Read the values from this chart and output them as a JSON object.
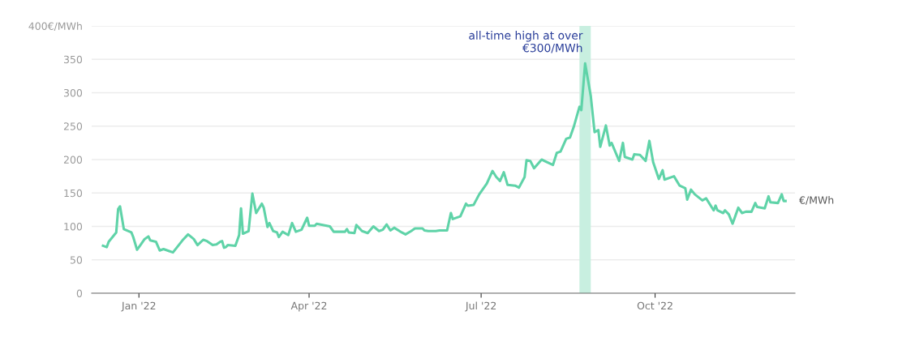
{
  "chart_data": {
    "type": "line",
    "x": [
      "2021-12-13",
      "2021-12-15",
      "2021-12-16",
      "2021-12-20",
      "2021-12-21",
      "2021-12-22",
      "2021-12-24",
      "2021-12-28",
      "2021-12-29",
      "2021-12-31",
      "2022-01-02",
      "2022-01-04",
      "2022-01-06",
      "2022-01-07",
      "2022-01-10",
      "2022-01-12",
      "2022-01-14",
      "2022-01-17",
      "2022-01-19",
      "2022-01-24",
      "2022-01-27",
      "2022-01-30",
      "2022-02-01",
      "2022-02-04",
      "2022-02-06",
      "2022-02-09",
      "2022-02-11",
      "2022-02-13",
      "2022-02-14",
      "2022-02-15",
      "2022-02-16",
      "2022-02-17",
      "2022-02-21",
      "2022-02-23",
      "2022-02-24",
      "2022-02-25",
      "2022-02-28",
      "2022-03-02",
      "2022-03-04",
      "2022-03-07",
      "2022-03-08",
      "2022-03-10",
      "2022-03-11",
      "2022-03-13",
      "2022-03-15",
      "2022-03-16",
      "2022-03-18",
      "2022-03-21",
      "2022-03-23",
      "2022-03-25",
      "2022-03-28",
      "2022-03-31",
      "2022-04-01",
      "2022-04-04",
      "2022-04-05",
      "2022-04-12",
      "2022-04-14",
      "2022-04-20",
      "2022-04-21",
      "2022-04-22",
      "2022-04-25",
      "2022-04-26",
      "2022-04-29",
      "2022-05-02",
      "2022-05-05",
      "2022-05-08",
      "2022-05-10",
      "2022-05-12",
      "2022-05-14",
      "2022-05-16",
      "2022-05-20",
      "2022-05-22",
      "2022-05-25",
      "2022-05-27",
      "2022-05-31",
      "2022-06-01",
      "2022-06-03",
      "2022-06-07",
      "2022-06-09",
      "2022-06-13",
      "2022-06-15",
      "2022-06-16",
      "2022-06-20",
      "2022-06-23",
      "2022-06-24",
      "2022-06-27",
      "2022-06-30",
      "2022-07-04",
      "2022-07-07",
      "2022-07-09",
      "2022-07-11",
      "2022-07-13",
      "2022-07-15",
      "2022-07-19",
      "2022-07-21",
      "2022-07-24",
      "2022-07-25",
      "2022-07-27",
      "2022-07-29",
      "2022-08-02",
      "2022-08-05",
      "2022-08-08",
      "2022-08-10",
      "2022-08-12",
      "2022-08-15",
      "2022-08-17",
      "2022-08-19",
      "2022-08-22",
      "2022-08-23",
      "2022-08-25",
      "2022-08-28",
      "2022-08-30",
      "2022-09-01",
      "2022-09-02",
      "2022-09-05",
      "2022-09-07",
      "2022-09-08",
      "2022-09-12",
      "2022-09-14",
      "2022-09-15",
      "2022-09-19",
      "2022-09-20",
      "2022-09-23",
      "2022-09-26",
      "2022-09-28",
      "2022-09-30",
      "2022-10-03",
      "2022-10-05",
      "2022-10-06",
      "2022-10-11",
      "2022-10-14",
      "2022-10-17",
      "2022-10-18",
      "2022-10-20",
      "2022-10-22",
      "2022-10-26",
      "2022-10-28",
      "2022-11-01",
      "2022-11-02",
      "2022-11-03",
      "2022-11-06",
      "2022-11-07",
      "2022-11-09",
      "2022-11-11",
      "2022-11-14",
      "2022-11-16",
      "2022-11-18",
      "2022-11-21",
      "2022-11-23",
      "2022-11-24",
      "2022-11-28",
      "2022-11-30",
      "2022-12-01",
      "2022-12-05",
      "2022-12-07",
      "2022-12-08",
      "2022-12-09"
    ],
    "series": [
      {
        "name": "€/MWh",
        "color": "#5fd3a8",
        "values": [
          71,
          69,
          77,
          91,
          126,
          130,
          96,
          91,
          84,
          65,
          73,
          81,
          85,
          79,
          77,
          64,
          66,
          63,
          61,
          79,
          88,
          81,
          72,
          80,
          78,
          72,
          73,
          77,
          78,
          68,
          69,
          72,
          71,
          87,
          127,
          89,
          93,
          149,
          120,
          134,
          128,
          99,
          105,
          93,
          91,
          84,
          92,
          87,
          105,
          92,
          95,
          113,
          101,
          101,
          104,
          100,
          92,
          92,
          96,
          91,
          90,
          102,
          93,
          90,
          100,
          93,
          95,
          103,
          94,
          98,
          91,
          88,
          93,
          97,
          97,
          94,
          93,
          93,
          94,
          94,
          120,
          111,
          115,
          134,
          131,
          132,
          148,
          164,
          183,
          174,
          168,
          181,
          162,
          161,
          158,
          174,
          199,
          198,
          187,
          200,
          196,
          192,
          210,
          212,
          231,
          233,
          249,
          279,
          274,
          344,
          295,
          241,
          244,
          219,
          251,
          221,
          225,
          198,
          225,
          204,
          200,
          208,
          207,
          198,
          228,
          196,
          171,
          184,
          170,
          175,
          161,
          157,
          140,
          155,
          148,
          139,
          142,
          124,
          131,
          124,
          120,
          124,
          118,
          104,
          128,
          120,
          122,
          122,
          135,
          129,
          127,
          145,
          136,
          135,
          148,
          138,
          138
        ]
      }
    ],
    "xlim": [
      "2021-12-07",
      "2022-12-14"
    ],
    "xticks": [
      {
        "value": "2022-01-01",
        "label": "Jan '22"
      },
      {
        "value": "2022-04-01",
        "label": "Apr '22"
      },
      {
        "value": "2022-07-01",
        "label": "Jul '22"
      },
      {
        "value": "2022-10-01",
        "label": "Oct '22"
      }
    ],
    "ylim": [
      0,
      400
    ],
    "yticks": [
      0,
      50,
      100,
      150,
      200,
      250,
      300,
      350,
      {
        "value": 400,
        "label": "400€/MWh"
      }
    ],
    "grid": "y",
    "legend": false,
    "marker": "none",
    "line_style": "solid",
    "bands": [
      {
        "axis": "x",
        "from": "2022-08-22",
        "to": "2022-08-28",
        "color": "#c8efe0"
      }
    ],
    "annotations": [
      {
        "text": "all-time high at over\n€300/MWh",
        "x": "2022-08-25",
        "y": 344
      }
    ]
  }
}
